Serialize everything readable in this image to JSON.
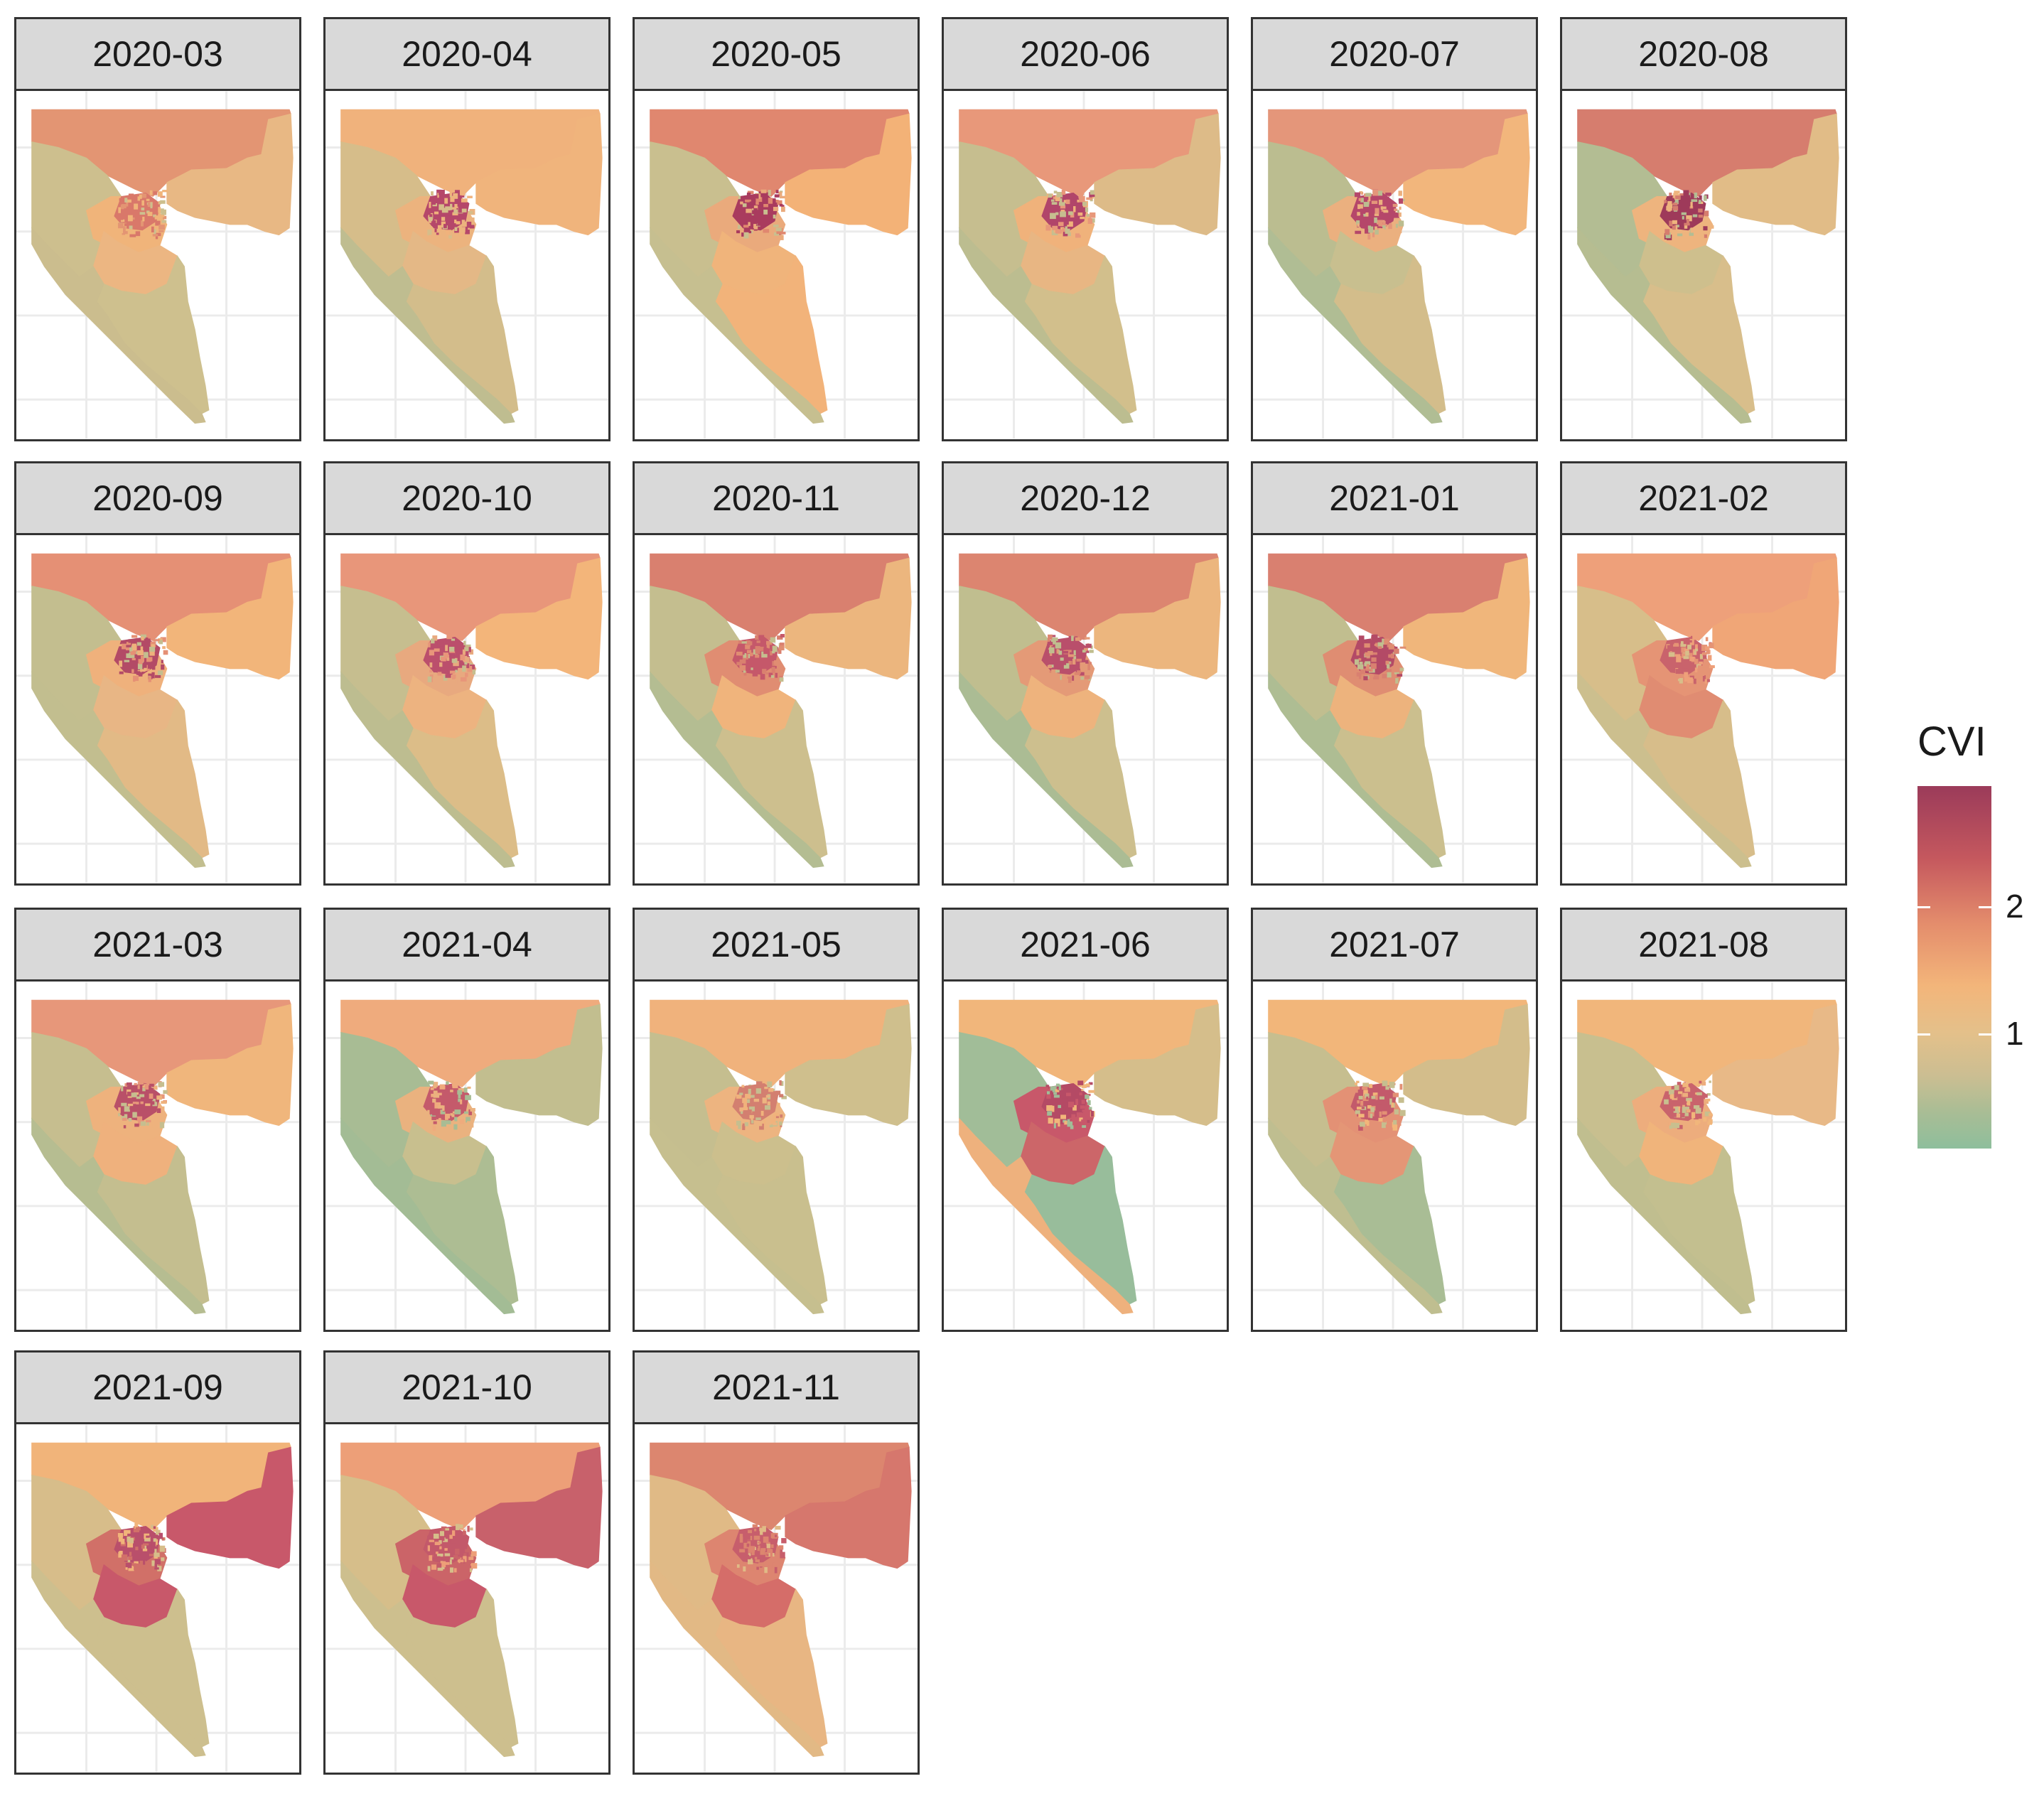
{
  "panels": [
    {
      "label": "2020-03",
      "colors": {
        "north": "#e39573",
        "east": "#e8b884",
        "west": "#cdbf8e",
        "center": "#f0b47a",
        "south_mid": "#ecb682",
        "south": "#cec08e",
        "core": "#d9786a",
        "south_west": "#cbbd8e"
      }
    },
    {
      "label": "2020-04",
      "colors": {
        "north": "#f0b27c",
        "east": "#f0b47c",
        "west": "#d6bd8a",
        "center": "#ecb37e",
        "south_mid": "#e4b886",
        "south": "#d3bd8b",
        "core": "#b5476a",
        "south_west": "#bfbd90"
      }
    },
    {
      "label": "2020-05",
      "colors": {
        "north": "#e0876f",
        "east": "#f3b277",
        "west": "#c9bf8f",
        "center": "#eaaa7c",
        "south_mid": "#f0b47b",
        "south": "#f2b37a",
        "core": "#a93b5e",
        "south_west": "#c6bf90"
      }
    },
    {
      "label": "2020-06",
      "colors": {
        "north": "#e8987a",
        "east": "#ddbb88",
        "west": "#c6be8f",
        "center": "#f0b27b",
        "south_mid": "#e8b683",
        "south": "#d2bf8c",
        "core": "#b1456a",
        "south_west": "#bcbd90"
      }
    },
    {
      "label": "2020-07",
      "colors": {
        "north": "#e4967a",
        "east": "#f2b67c",
        "west": "#bbbd90",
        "center": "#ebb07f",
        "south_mid": "#c8bf8f",
        "south": "#d3bd8b",
        "core": "#b5476a",
        "south_west": "#b0bd94"
      }
    },
    {
      "label": "2020-08",
      "colors": {
        "north": "#d67d6e",
        "east": "#e1bc87",
        "west": "#b3bd93",
        "center": "#eeb47e",
        "south_mid": "#cebf8d",
        "south": "#d8be8b",
        "core": "#9e3a5a",
        "south_west": "#b6bd91"
      }
    },
    {
      "label": "2020-09",
      "colors": {
        "north": "#e59075",
        "east": "#f2b57a",
        "west": "#c3be8f",
        "center": "#efb17c",
        "south_mid": "#e8b685",
        "south": "#e2ba86",
        "core": "#b34a66",
        "south_west": "#c2be8f"
      }
    },
    {
      "label": "2020-10",
      "colors": {
        "north": "#e8967a",
        "east": "#f3b57a",
        "west": "#c6be8f",
        "center": "#e8a97f",
        "south_mid": "#edb380",
        "south": "#dcbd88",
        "core": "#bb4f6c",
        "south_west": "#bdbd90"
      }
    },
    {
      "label": "2020-11",
      "colors": {
        "north": "#d9806f",
        "east": "#ecb67e",
        "west": "#c4be8f",
        "center": "#e08d72",
        "south_mid": "#f0b47c",
        "south": "#cdbf8e",
        "core": "#c5586a",
        "south_west": "#b4bd92"
      }
    },
    {
      "label": "2020-12",
      "colors": {
        "north": "#dc8570",
        "east": "#ecb67e",
        "west": "#c0be8f",
        "center": "#e49a77",
        "south_mid": "#eeb37d",
        "south": "#cdbf8e",
        "core": "#b94f6b",
        "south_west": "#abbc94"
      }
    },
    {
      "label": "2021-01",
      "colors": {
        "north": "#d98070",
        "east": "#f0b67b",
        "west": "#c1be8f",
        "center": "#df8d72",
        "south_mid": "#edb37d",
        "south": "#cbbf8e",
        "core": "#b34a66",
        "south_west": "#aebd93"
      }
    },
    {
      "label": "2021-02",
      "colors": {
        "north": "#eea07a",
        "east": "#f0a677",
        "west": "#d7be8a",
        "center": "#e59475",
        "south_mid": "#e08c72",
        "south": "#d7bd8a",
        "core": "#c9636c",
        "south_west": "#ccbf8e"
      }
    },
    {
      "label": "2021-03",
      "colors": {
        "north": "#e7977a",
        "east": "#f0b67c",
        "west": "#c6be8f",
        "center": "#eeb27d",
        "south_mid": "#efb17d",
        "south": "#c4be8f",
        "core": "#b95068",
        "south_west": "#b6bd91"
      }
    },
    {
      "label": "2021-04",
      "colors": {
        "north": "#efab7d",
        "east": "#c2be8f",
        "west": "#a8bc94",
        "center": "#eab27f",
        "south_mid": "#c8bf8e",
        "south": "#adbd93",
        "core": "#c45a6b",
        "south_west": "#a3bc95"
      }
    },
    {
      "label": "2021-05",
      "colors": {
        "north": "#f0b27c",
        "east": "#cfbf8d",
        "west": "#c5be8f",
        "center": "#edb480",
        "south_mid": "#ccbf8d",
        "south": "#c9bf8e",
        "core": "#d37f70",
        "south_west": "#c6bf8f"
      }
    },
    {
      "label": "2021-06",
      "colors": {
        "north": "#f1b67b",
        "east": "#d5be8b",
        "west": "#a1bd98",
        "center": "#c8586a",
        "south_mid": "#cc6669",
        "south": "#98bd9b",
        "core": "#b44a65",
        "south_west": "#eeb17d"
      }
    },
    {
      "label": "2021-07",
      "colors": {
        "north": "#f2b67a",
        "east": "#d3bd8b",
        "west": "#c6be8f",
        "center": "#e39175",
        "south_mid": "#e49676",
        "south": "#a9bd95",
        "core": "#c35a6b",
        "south_west": "#bfbe90"
      }
    },
    {
      "label": "2021-08",
      "colors": {
        "north": "#f1b67b",
        "east": "#e8b987",
        "west": "#c8bf8f",
        "center": "#edad7d",
        "south_mid": "#f0b47b",
        "south": "#c3bf8f",
        "core": "#c9636c",
        "south_west": "#c0be8f"
      }
    },
    {
      "label": "2021-09",
      "colors": {
        "north": "#f1b47a",
        "east": "#c8586a",
        "west": "#d7bd8a",
        "center": "#d17068",
        "south_mid": "#c8586a",
        "south": "#cdbf8e",
        "core": "#b94f6b",
        "south_west": "#cdbf8e"
      }
    },
    {
      "label": "2021-10",
      "colors": {
        "north": "#ed9f78",
        "east": "#c8616b",
        "west": "#d6be8a",
        "center": "#cb6468",
        "south_mid": "#c8586a",
        "south": "#cdbf8e",
        "core": "#c3596a",
        "south_west": "#cdbf8e"
      }
    },
    {
      "label": "2021-11",
      "colors": {
        "north": "#dc866f",
        "east": "#d6776d",
        "west": "#e0ba86",
        "center": "#dd8570",
        "south_mid": "#d56d69",
        "south": "#e8b683",
        "core": "#c75e6c",
        "south_west": "#e2b985"
      }
    }
  ],
  "legend": {
    "title": "CVI",
    "ticks": [
      {
        "label": "2",
        "value": 2
      },
      {
        "label": "1",
        "value": 1
      }
    ],
    "range": [
      0.1,
      2.95
    ],
    "colors": [
      "#9b3b5a",
      "#c5585e",
      "#e48d6c",
      "#f3b57a",
      "#e4c08a",
      "#cbbe92",
      "#a9bd95",
      "#8ebe9c"
    ]
  }
}
